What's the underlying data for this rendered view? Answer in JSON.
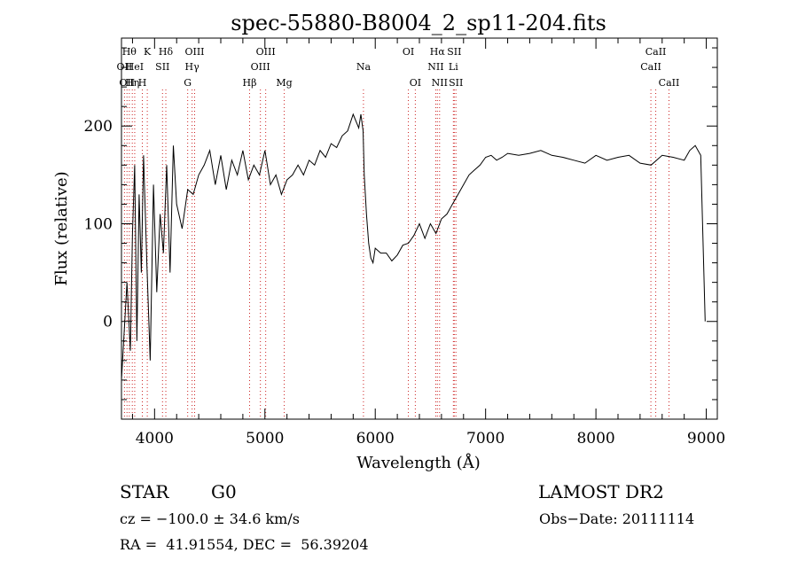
{
  "chart_data": {
    "type": "line",
    "title": "spec-55880-B8004_2_sp11-204.fits",
    "xlabel": "Wavelength (Å)",
    "ylabel": "Flux (relative)",
    "xlim": [
      3700,
      9100
    ],
    "ylim": [
      -100,
      290
    ],
    "x_ticks": [
      4000,
      5000,
      6000,
      7000,
      8000,
      9000
    ],
    "y_ticks": [
      0,
      100,
      200
    ],
    "grid": false,
    "series": [
      {
        "x": [
          3700,
          3750,
          3780,
          3800,
          3820,
          3840,
          3860,
          3880,
          3900,
          3930,
          3960,
          3990,
          4020,
          4050,
          4080,
          4110,
          4140,
          4170,
          4200,
          4250,
          4300,
          4350,
          4400,
          4450,
          4500,
          4550,
          4600,
          4650,
          4700,
          4750,
          4800,
          4850,
          4900,
          4950,
          5000,
          5050,
          5100,
          5150,
          5200,
          5250,
          5300,
          5350,
          5400,
          5450,
          5500,
          5550,
          5600,
          5650,
          5700,
          5750,
          5800,
          5850,
          5870,
          5890,
          5900,
          5920,
          5940,
          5960,
          5980,
          6000,
          6050,
          6100,
          6150,
          6200,
          6250,
          6300,
          6350,
          6400,
          6450,
          6500,
          6550,
          6600,
          6650,
          6700,
          6750,
          6800,
          6850,
          6900,
          6950,
          7000,
          7050,
          7100,
          7150,
          7200,
          7300,
          7400,
          7500,
          7600,
          7700,
          7800,
          7900,
          8000,
          8100,
          8200,
          8300,
          8400,
          8500,
          8550,
          8600,
          8700,
          8800,
          8850,
          8900,
          8950,
          8990
        ],
        "y": [
          -60,
          40,
          -30,
          90,
          160,
          -20,
          130,
          50,
          170,
          60,
          -40,
          140,
          30,
          110,
          70,
          160,
          50,
          180,
          120,
          95,
          135,
          130,
          150,
          160,
          175,
          140,
          170,
          135,
          165,
          150,
          175,
          145,
          160,
          150,
          175,
          140,
          150,
          130,
          145,
          150,
          160,
          150,
          165,
          160,
          175,
          168,
          182,
          178,
          190,
          195,
          212,
          198,
          212,
          195,
          150,
          110,
          80,
          65,
          60,
          75,
          70,
          70,
          62,
          68,
          78,
          80,
          88,
          100,
          85,
          100,
          90,
          105,
          110,
          120,
          130,
          140,
          150,
          155,
          160,
          168,
          170,
          165,
          168,
          172,
          170,
          172,
          175,
          170,
          168,
          165,
          162,
          170,
          165,
          168,
          170,
          162,
          160,
          165,
          170,
          168,
          165,
          175,
          180,
          170,
          0
        ]
      }
    ],
    "line_markers": [
      {
        "wl": 3727,
        "label": "OII",
        "row": 2
      },
      {
        "wl": 3750,
        "label": "OII",
        "row": 3
      },
      {
        "wl": 3771,
        "label": "Hθ",
        "row": 1
      },
      {
        "wl": 3798,
        "label": "Hη",
        "row": 3
      },
      {
        "wl": 3820,
        "label": "HeI",
        "row": 2
      },
      {
        "wl": 3889,
        "label": "H",
        "row": 3
      },
      {
        "wl": 3934,
        "label": "K",
        "row": 1
      },
      {
        "wl": 4072,
        "label": "SII",
        "row": 2
      },
      {
        "wl": 4102,
        "label": "Hδ",
        "row": 1
      },
      {
        "wl": 4300,
        "label": "G",
        "row": 3
      },
      {
        "wl": 4340,
        "label": "Hγ",
        "row": 2
      },
      {
        "wl": 4363,
        "label": "OIII",
        "row": 1
      },
      {
        "wl": 4861,
        "label": "Hβ",
        "row": 3
      },
      {
        "wl": 4959,
        "label": "OIII",
        "row": 2
      },
      {
        "wl": 5007,
        "label": "OIII",
        "row": 1
      },
      {
        "wl": 5175,
        "label": "Mg",
        "row": 3
      },
      {
        "wl": 5893,
        "label": "Na",
        "row": 2
      },
      {
        "wl": 6300,
        "label": "OI",
        "row": 1
      },
      {
        "wl": 6363,
        "label": "OI",
        "row": 3
      },
      {
        "wl": 6548,
        "label": "NII",
        "row": 2
      },
      {
        "wl": 6563,
        "label": "Hα",
        "row": 1
      },
      {
        "wl": 6583,
        "label": "NII",
        "row": 3
      },
      {
        "wl": 6708,
        "label": "Li",
        "row": 2
      },
      {
        "wl": 6716,
        "label": "SII",
        "row": 1
      },
      {
        "wl": 6731,
        "label": "SII",
        "row": 3
      },
      {
        "wl": 8498,
        "label": "CaII",
        "row": 2
      },
      {
        "wl": 8542,
        "label": "CaII",
        "row": 1
      },
      {
        "wl": 8662,
        "label": "CaII",
        "row": 3
      }
    ]
  },
  "info": {
    "object_class": "STAR",
    "subclass": "G0",
    "survey": "LAMOST DR2",
    "cz": "cz = −100.0 ± 34.6 km/s",
    "obs_date": "Obs−Date: 20111114",
    "coords": "RA =  41.91554, DEC =  56.39204"
  },
  "colors": {
    "spectrum": "#000000",
    "marker": "#cc2222"
  }
}
